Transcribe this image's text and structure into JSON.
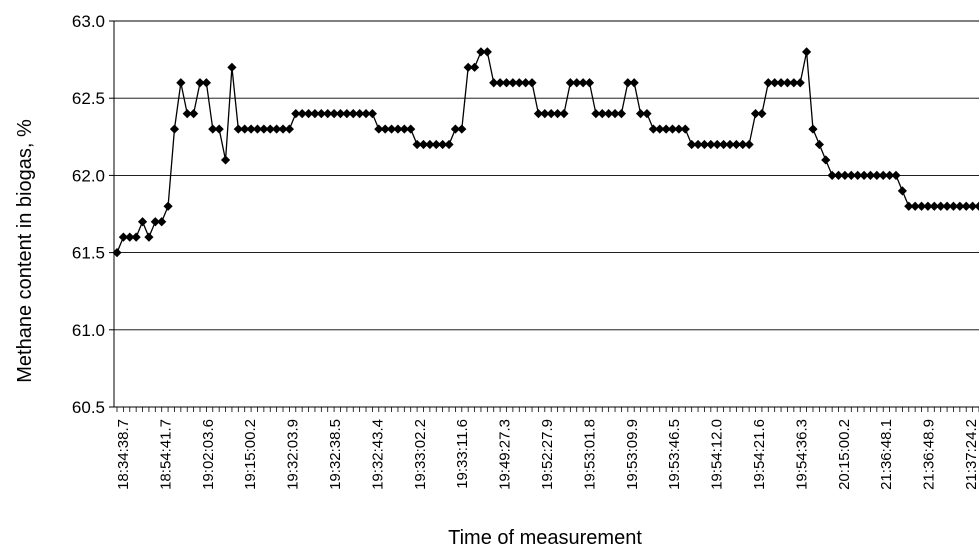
{
  "chart_data": {
    "type": "line",
    "title": "",
    "xlabel": "Time of measurement",
    "ylabel": "Methane content in biogas, %",
    "ylim": [
      60.5,
      63.0
    ],
    "yticks": [
      "60.5",
      "61.0",
      "61.5",
      "62.0",
      "62.5",
      "63.0"
    ],
    "grid": true,
    "legend": "none",
    "marker": "diamond",
    "colors": {
      "line": "#000000",
      "grid": "#000000",
      "background": "#ffffff"
    },
    "xtick_labels": [
      "18:34:38.7",
      "18:54:41.7",
      "19:02:03.6",
      "19:15:00.2",
      "19:32:03.9",
      "19:32:38.5",
      "19:32:43.4",
      "19:33:02.2",
      "19:33:11.6",
      "19:49:27.3",
      "19:52:27.9",
      "19:53:01.8",
      "19:53:09.9",
      "19:53:46.5",
      "19:54:12.0",
      "19:54:21.6",
      "19:54:36.3",
      "20:15:00.2",
      "21:36:48.1",
      "21:36:48.9",
      "21:37:24.2"
    ],
    "values": [
      61.5,
      61.6,
      61.6,
      61.6,
      61.7,
      61.6,
      61.7,
      61.7,
      61.8,
      62.3,
      62.6,
      62.4,
      62.4,
      62.6,
      62.6,
      62.3,
      62.3,
      62.1,
      62.7,
      62.3,
      62.3,
      62.3,
      62.3,
      62.3,
      62.3,
      62.3,
      62.3,
      62.3,
      62.4,
      62.4,
      62.4,
      62.4,
      62.4,
      62.4,
      62.4,
      62.4,
      62.4,
      62.4,
      62.4,
      62.4,
      62.4,
      62.3,
      62.3,
      62.3,
      62.3,
      62.3,
      62.3,
      62.2,
      62.2,
      62.2,
      62.2,
      62.2,
      62.2,
      62.3,
      62.3,
      62.7,
      62.7,
      62.8,
      62.8,
      62.6,
      62.6,
      62.6,
      62.6,
      62.6,
      62.6,
      62.6,
      62.4,
      62.4,
      62.4,
      62.4,
      62.4,
      62.6,
      62.6,
      62.6,
      62.6,
      62.4,
      62.4,
      62.4,
      62.4,
      62.4,
      62.6,
      62.6,
      62.4,
      62.4,
      62.3,
      62.3,
      62.3,
      62.3,
      62.3,
      62.3,
      62.2,
      62.2,
      62.2,
      62.2,
      62.2,
      62.2,
      62.2,
      62.2,
      62.2,
      62.2,
      62.4,
      62.4,
      62.6,
      62.6,
      62.6,
      62.6,
      62.6,
      62.6,
      62.8,
      62.3,
      62.2,
      62.1,
      62.0,
      62.0,
      62.0,
      62.0,
      62.0,
      62.0,
      62.0,
      62.0,
      62.0,
      62.0,
      62.0,
      61.9,
      61.8,
      61.8,
      61.8,
      61.8,
      61.8,
      61.8,
      61.8,
      61.8,
      61.8,
      61.8,
      61.8,
      61.8
    ]
  }
}
